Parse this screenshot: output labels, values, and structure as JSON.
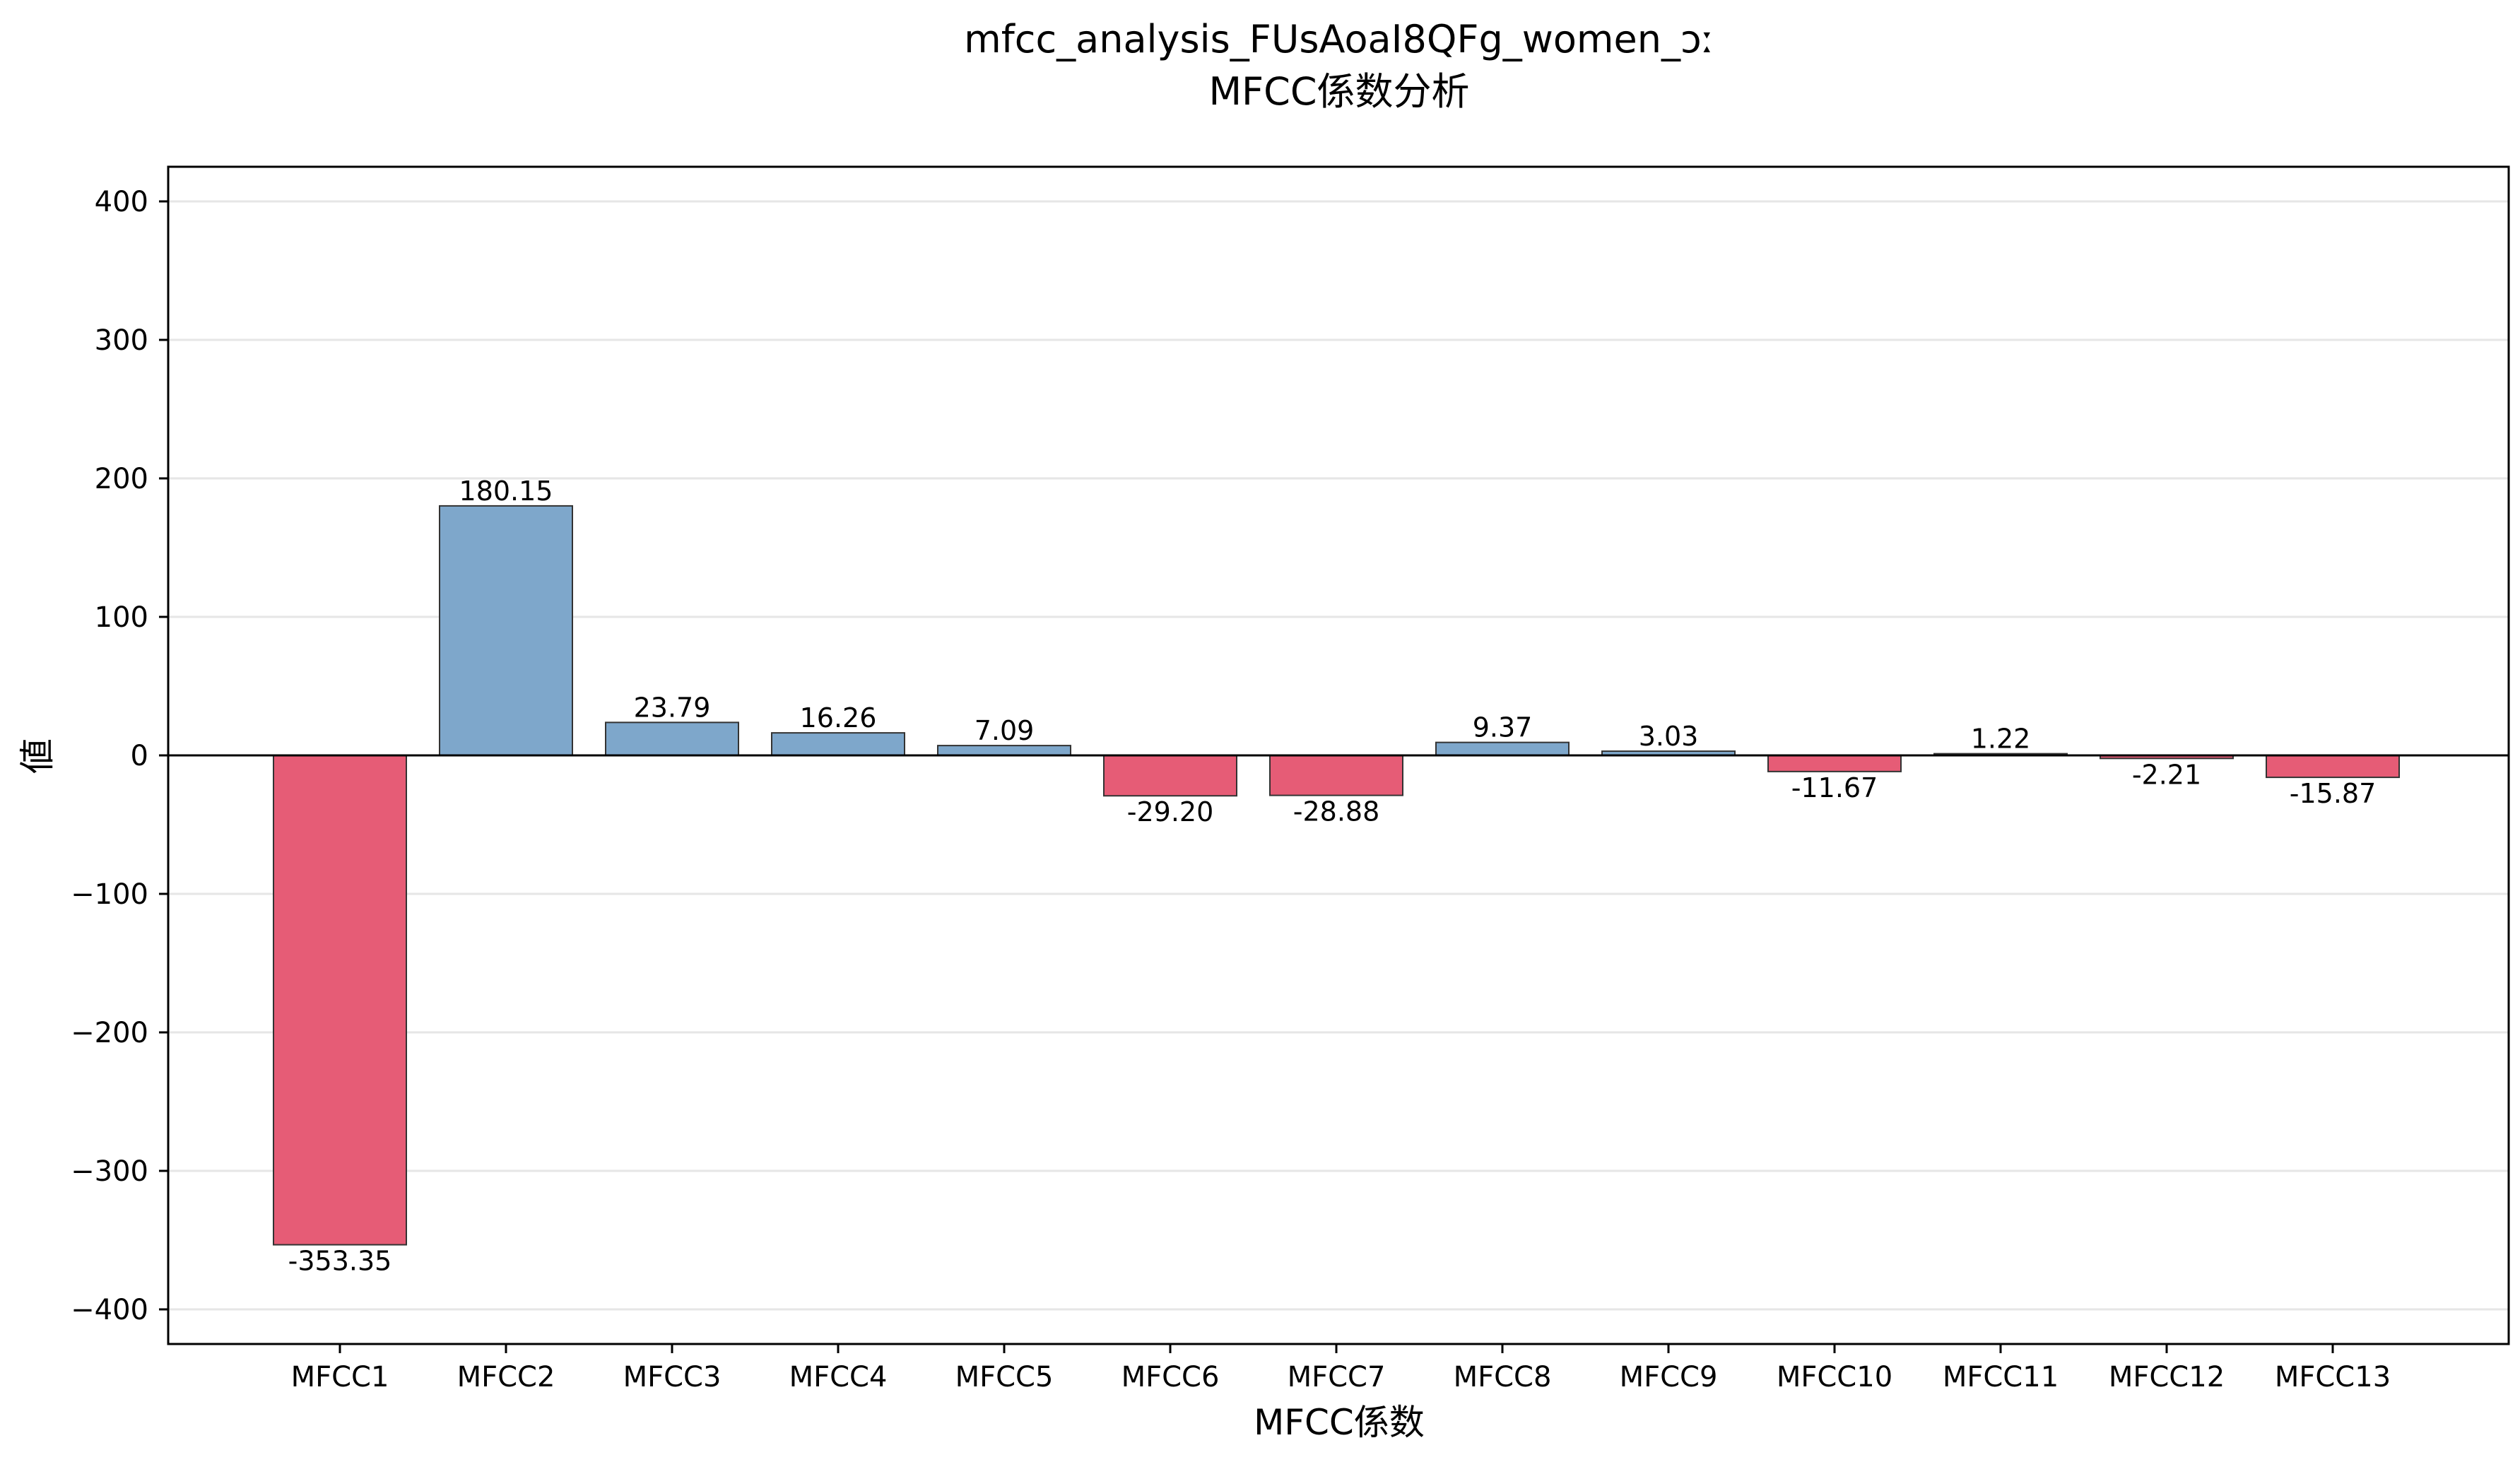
{
  "chart_data": {
    "type": "bar",
    "title": "mfcc_analysis_FUsAoaI8QFg_women_ɔː",
    "subtitle": "MFCC係数分析",
    "xlabel": "MFCC係数",
    "ylabel": "値",
    "categories": [
      "MFCC1",
      "MFCC2",
      "MFCC3",
      "MFCC4",
      "MFCC5",
      "MFCC6",
      "MFCC7",
      "MFCC8",
      "MFCC9",
      "MFCC10",
      "MFCC11",
      "MFCC12",
      "MFCC13"
    ],
    "values": [
      -353.35,
      180.15,
      23.79,
      16.26,
      7.09,
      -29.2,
      -28.88,
      9.37,
      3.03,
      -11.67,
      1.22,
      -2.21,
      -15.87
    ],
    "value_labels": [
      "-353.35",
      "180.15",
      "23.79",
      "16.26",
      "7.09",
      "-29.20",
      "-28.88",
      "9.37",
      "3.03",
      "-11.67",
      "1.22",
      "-2.21",
      "-15.87"
    ],
    "ylim": [
      -425,
      425
    ],
    "yticks": [
      -400,
      -300,
      -200,
      -100,
      0,
      100,
      200,
      300,
      400
    ],
    "ytick_labels": [
      "−400",
      "−300",
      "−200",
      "−100",
      "0",
      "100",
      "200",
      "300",
      "400"
    ],
    "grid": "horizontal",
    "legend": "none",
    "colors": {
      "positive": "#7ea7cb",
      "negative": "#e65c76",
      "bar_edge": "#333333",
      "grid": "#e6e6e6",
      "zero_line": "#000000"
    }
  }
}
